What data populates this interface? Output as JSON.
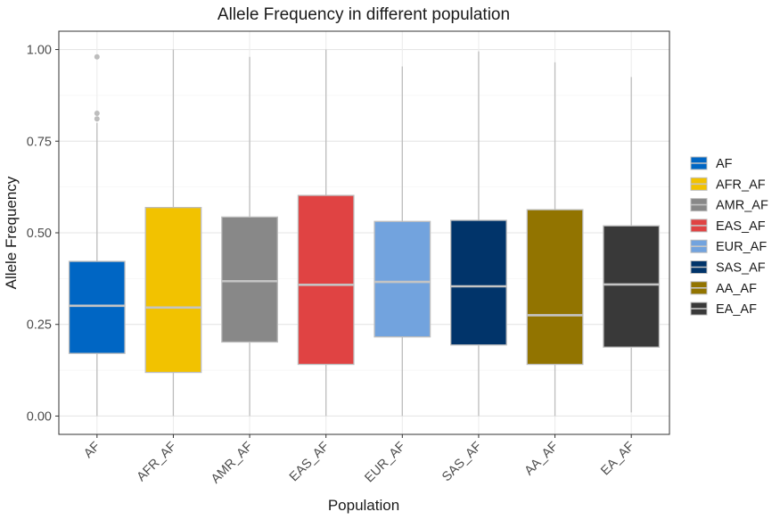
{
  "chart_data": {
    "type": "boxplot",
    "title": "Allele Frequency in different population",
    "xlabel": "Population",
    "ylabel": "Allele Frequency",
    "ylim": [
      -0.05,
      1.05
    ],
    "yticks": [
      "0.00",
      "0.25",
      "0.50",
      "0.75",
      "1.00"
    ],
    "ytick_values": [
      0,
      0.25,
      0.5,
      0.75,
      1.0
    ],
    "grid": true,
    "legend_position": "right",
    "categories": [
      "AF",
      "AFR_AF",
      "AMR_AF",
      "EAS_AF",
      "EUR_AF",
      "SAS_AF",
      "AA_AF",
      "EA_AF"
    ],
    "series": [
      {
        "name": "AF",
        "color": "#0066c4",
        "min": 0.0,
        "q1": 0.171,
        "median": 0.301,
        "q3": 0.422,
        "max": 0.8,
        "outliers": [
          0.811,
          0.826,
          0.98
        ]
      },
      {
        "name": "AFR_AF",
        "color": "#f2c200",
        "min": 0.0,
        "q1": 0.119,
        "median": 0.296,
        "q3": 0.569,
        "max": 1.0,
        "outliers": []
      },
      {
        "name": "AMR_AF",
        "color": "#888888",
        "min": 0.0,
        "q1": 0.202,
        "median": 0.368,
        "q3": 0.543,
        "max": 0.98,
        "outliers": []
      },
      {
        "name": "EAS_AF",
        "color": "#e04343",
        "min": 0.0,
        "q1": 0.141,
        "median": 0.358,
        "q3": 0.602,
        "max": 1.0,
        "outliers": []
      },
      {
        "name": "EUR_AF",
        "color": "#72a3de",
        "min": 0.0,
        "q1": 0.216,
        "median": 0.366,
        "q3": 0.531,
        "max": 0.954,
        "outliers": []
      },
      {
        "name": "SAS_AF",
        "color": "#01346a",
        "min": 0.0,
        "q1": 0.194,
        "median": 0.354,
        "q3": 0.534,
        "max": 0.995,
        "outliers": []
      },
      {
        "name": "AA_AF",
        "color": "#927400",
        "min": 0.0,
        "q1": 0.141,
        "median": 0.275,
        "q3": 0.563,
        "max": 0.965,
        "outliers": []
      },
      {
        "name": "EA_AF",
        "color": "#393939",
        "min": 0.01,
        "q1": 0.188,
        "median": 0.359,
        "q3": 0.519,
        "max": 0.925,
        "outliers": []
      }
    ]
  }
}
